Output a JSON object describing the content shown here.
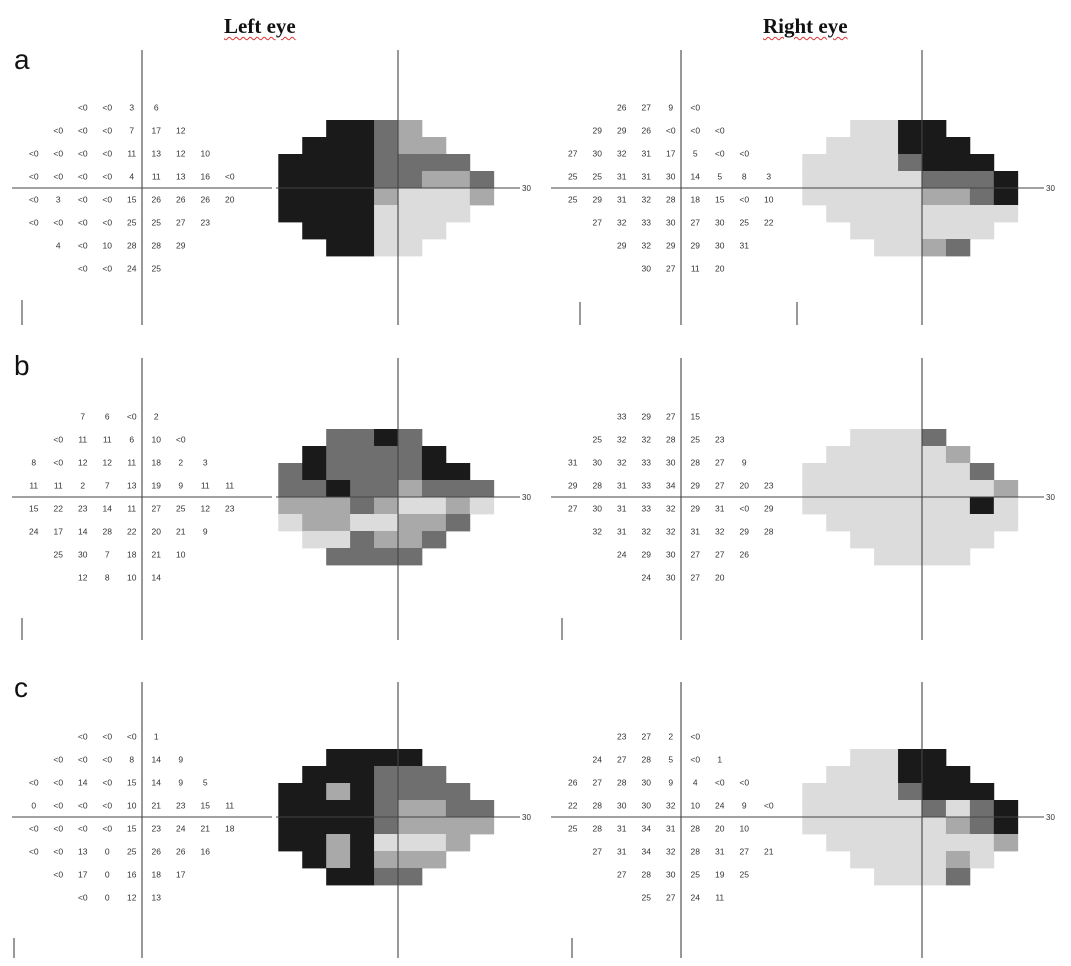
{
  "titles": {
    "left": "Left eye",
    "right": "Right eye"
  },
  "rows": [
    {
      "label": "a",
      "left_values": [
        [
          "",
          "",
          "<0",
          "<0",
          "3",
          "6",
          "",
          "",
          "",
          ""
        ],
        [
          "",
          "<0",
          "<0",
          "<0",
          "7",
          "17",
          "12",
          "",
          "",
          ""
        ],
        [
          "<0",
          "<0",
          "<0",
          "<0",
          "11",
          "13",
          "12",
          "10",
          "",
          ""
        ],
        [
          "<0",
          "<0",
          "<0",
          "<0",
          "4",
          "11",
          "13",
          "16",
          "<0",
          ""
        ],
        [
          "<0",
          "3",
          "<0",
          "<0",
          "15",
          "26",
          "26",
          "26",
          "20",
          ""
        ],
        [
          "<0",
          "<0",
          "<0",
          "<0",
          "25",
          "25",
          "27",
          "23",
          "",
          ""
        ],
        [
          "",
          "4",
          "<0",
          "10",
          "28",
          "28",
          "29",
          "",
          "",
          ""
        ],
        [
          "",
          "",
          "<0",
          "<0",
          "24",
          "25",
          "",
          "",
          "",
          ""
        ]
      ],
      "left_gray": [
        [
          0,
          0,
          4,
          4,
          3,
          2,
          0,
          0,
          0,
          0
        ],
        [
          0,
          4,
          4,
          4,
          3,
          2,
          2,
          0,
          0,
          0
        ],
        [
          4,
          4,
          4,
          4,
          3,
          3,
          3,
          3,
          0,
          0
        ],
        [
          4,
          4,
          4,
          4,
          3,
          3,
          2,
          2,
          3,
          0
        ],
        [
          4,
          4,
          4,
          4,
          2,
          1,
          1,
          1,
          2,
          0
        ],
        [
          4,
          4,
          4,
          4,
          1,
          1,
          1,
          1,
          0,
          0
        ],
        [
          0,
          4,
          4,
          4,
          1,
          1,
          1,
          0,
          0,
          0
        ],
        [
          0,
          0,
          4,
          4,
          1,
          1,
          0,
          0,
          0,
          0
        ]
      ],
      "right_values": [
        [
          "",
          "",
          "26",
          "27",
          "9",
          "<0",
          "",
          "",
          "",
          ""
        ],
        [
          "",
          "29",
          "29",
          "26",
          "<0",
          "<0",
          "<0",
          "",
          "",
          ""
        ],
        [
          "27",
          "30",
          "32",
          "31",
          "17",
          "5",
          "<0",
          "<0",
          "",
          ""
        ],
        [
          "25",
          "25",
          "31",
          "31",
          "30",
          "14",
          "5",
          "8",
          "3",
          ""
        ],
        [
          "25",
          "29",
          "31",
          "32",
          "28",
          "18",
          "15",
          "<0",
          "10",
          ""
        ],
        [
          "",
          "27",
          "32",
          "33",
          "30",
          "27",
          "30",
          "25",
          "22",
          ""
        ],
        [
          "",
          "",
          "29",
          "32",
          "29",
          "29",
          "30",
          "31",
          "",
          ""
        ],
        [
          "",
          "",
          "",
          "30",
          "27",
          "11",
          "20",
          "",
          "",
          ""
        ]
      ],
      "right_gray": [
        [
          0,
          0,
          1,
          1,
          4,
          4,
          0,
          0,
          0,
          0
        ],
        [
          0,
          1,
          1,
          1,
          4,
          4,
          4,
          0,
          0,
          0
        ],
        [
          1,
          1,
          1,
          1,
          3,
          4,
          4,
          4,
          0,
          0
        ],
        [
          1,
          1,
          1,
          1,
          1,
          3,
          3,
          3,
          4,
          0
        ],
        [
          1,
          1,
          1,
          1,
          1,
          2,
          2,
          3,
          4,
          0
        ],
        [
          0,
          1,
          1,
          1,
          1,
          1,
          1,
          1,
          1,
          0
        ],
        [
          0,
          0,
          1,
          1,
          1,
          1,
          1,
          1,
          0,
          0
        ],
        [
          0,
          0,
          0,
          1,
          1,
          2,
          3,
          0,
          0,
          0
        ]
      ]
    },
    {
      "label": "b",
      "left_values": [
        [
          "",
          "",
          "7",
          "6",
          "<0",
          "2",
          "",
          "",
          "",
          ""
        ],
        [
          "",
          "<0",
          "11",
          "11",
          "6",
          "10",
          "<0",
          "",
          "",
          ""
        ],
        [
          "8",
          "<0",
          "12",
          "12",
          "11",
          "18",
          "2",
          "3",
          "",
          ""
        ],
        [
          "11",
          "11",
          "2",
          "7",
          "13",
          "19",
          "9",
          "11",
          "11",
          ""
        ],
        [
          "15",
          "22",
          "23",
          "14",
          "11",
          "27",
          "25",
          "12",
          "23",
          ""
        ],
        [
          "24",
          "17",
          "14",
          "28",
          "22",
          "20",
          "21",
          "9",
          "",
          ""
        ],
        [
          "",
          "25",
          "30",
          "7",
          "18",
          "21",
          "10",
          "",
          "",
          ""
        ],
        [
          "",
          "",
          "12",
          "8",
          "10",
          "14",
          "",
          "",
          "",
          ""
        ]
      ],
      "left_gray": [
        [
          0,
          0,
          3,
          3,
          4,
          3,
          0,
          0,
          0,
          0
        ],
        [
          0,
          4,
          3,
          3,
          3,
          3,
          4,
          0,
          0,
          0
        ],
        [
          3,
          4,
          3,
          3,
          3,
          3,
          4,
          4,
          0,
          0
        ],
        [
          3,
          3,
          4,
          3,
          3,
          2,
          3,
          3,
          3,
          0
        ],
        [
          2,
          2,
          2,
          3,
          2,
          1,
          1,
          2,
          1,
          0
        ],
        [
          1,
          2,
          2,
          1,
          1,
          2,
          2,
          3,
          0,
          0
        ],
        [
          0,
          1,
          1,
          3,
          2,
          2,
          3,
          0,
          0,
          0
        ],
        [
          0,
          0,
          3,
          3,
          3,
          3,
          0,
          0,
          0,
          0
        ]
      ],
      "right_values": [
        [
          "",
          "",
          "33",
          "29",
          "27",
          "15",
          "",
          "",
          "",
          ""
        ],
        [
          "",
          "25",
          "32",
          "32",
          "28",
          "25",
          "23",
          "",
          "",
          ""
        ],
        [
          "31",
          "30",
          "32",
          "33",
          "30",
          "28",
          "27",
          "9",
          "",
          ""
        ],
        [
          "29",
          "28",
          "31",
          "33",
          "34",
          "29",
          "27",
          "20",
          "23",
          ""
        ],
        [
          "27",
          "30",
          "31",
          "33",
          "32",
          "29",
          "31",
          "<0",
          "29",
          ""
        ],
        [
          "",
          "32",
          "31",
          "32",
          "32",
          "31",
          "32",
          "29",
          "28",
          ""
        ],
        [
          "",
          "",
          "24",
          "29",
          "30",
          "27",
          "27",
          "26",
          "",
          ""
        ],
        [
          "",
          "",
          "",
          "24",
          "30",
          "27",
          "20",
          "",
          "",
          ""
        ]
      ],
      "right_gray": [
        [
          0,
          0,
          1,
          1,
          1,
          3,
          0,
          0,
          0,
          0
        ],
        [
          0,
          1,
          1,
          1,
          1,
          1,
          2,
          0,
          0,
          0
        ],
        [
          1,
          1,
          1,
          1,
          1,
          1,
          1,
          3,
          0,
          0
        ],
        [
          1,
          1,
          1,
          1,
          1,
          1,
          1,
          1,
          2,
          0
        ],
        [
          1,
          1,
          1,
          1,
          1,
          1,
          1,
          4,
          1,
          0
        ],
        [
          0,
          1,
          1,
          1,
          1,
          1,
          1,
          1,
          1,
          0
        ],
        [
          0,
          0,
          1,
          1,
          1,
          1,
          1,
          1,
          0,
          0
        ],
        [
          0,
          0,
          0,
          1,
          1,
          1,
          1,
          0,
          0,
          0
        ]
      ]
    },
    {
      "label": "c",
      "left_values": [
        [
          "",
          "",
          "<0",
          "<0",
          "<0",
          "1",
          "",
          "",
          "",
          ""
        ],
        [
          "",
          "<0",
          "<0",
          "<0",
          "8",
          "14",
          "9",
          "",
          "",
          ""
        ],
        [
          "<0",
          "<0",
          "14",
          "<0",
          "15",
          "14",
          "9",
          "5",
          "",
          ""
        ],
        [
          "0",
          "<0",
          "<0",
          "<0",
          "10",
          "21",
          "23",
          "15",
          "11",
          ""
        ],
        [
          "<0",
          "<0",
          "<0",
          "<0",
          "15",
          "23",
          "24",
          "21",
          "18",
          ""
        ],
        [
          "<0",
          "<0",
          "13",
          "0",
          "25",
          "26",
          "26",
          "16",
          "",
          ""
        ],
        [
          "",
          "<0",
          "17",
          "0",
          "16",
          "18",
          "17",
          "",
          "",
          ""
        ],
        [
          "",
          "",
          "<0",
          "0",
          "12",
          "13",
          "",
          "",
          "",
          ""
        ]
      ],
      "left_gray": [
        [
          0,
          0,
          4,
          4,
          4,
          4,
          0,
          0,
          0,
          0
        ],
        [
          0,
          4,
          4,
          4,
          3,
          3,
          3,
          0,
          0,
          0
        ],
        [
          4,
          4,
          2,
          4,
          3,
          3,
          3,
          3,
          0,
          0
        ],
        [
          4,
          4,
          4,
          4,
          3,
          2,
          2,
          3,
          3,
          0
        ],
        [
          4,
          4,
          4,
          4,
          3,
          2,
          2,
          2,
          2,
          0
        ],
        [
          4,
          4,
          2,
          4,
          1,
          1,
          1,
          2,
          0,
          0
        ],
        [
          0,
          4,
          2,
          4,
          2,
          2,
          2,
          0,
          0,
          0
        ],
        [
          0,
          0,
          4,
          4,
          3,
          3,
          0,
          0,
          0,
          0
        ]
      ],
      "right_values": [
        [
          "",
          "",
          "23",
          "27",
          "2",
          "<0",
          "",
          "",
          "",
          ""
        ],
        [
          "",
          "24",
          "27",
          "28",
          "5",
          "<0",
          "1",
          "",
          "",
          ""
        ],
        [
          "26",
          "27",
          "28",
          "30",
          "9",
          "4",
          "<0",
          "<0",
          "",
          ""
        ],
        [
          "22",
          "28",
          "30",
          "30",
          "32",
          "10",
          "24",
          "9",
          "<0",
          ""
        ],
        [
          "25",
          "28",
          "31",
          "34",
          "31",
          "28",
          "20",
          "10",
          "",
          ""
        ],
        [
          "",
          "27",
          "31",
          "34",
          "32",
          "28",
          "31",
          "27",
          "21",
          ""
        ],
        [
          "",
          "",
          "27",
          "28",
          "30",
          "25",
          "19",
          "25",
          "",
          ""
        ],
        [
          "",
          "",
          "",
          "25",
          "27",
          "24",
          "11",
          "",
          "",
          ""
        ]
      ],
      "right_gray": [
        [
          0,
          0,
          1,
          1,
          4,
          4,
          0,
          0,
          0,
          0
        ],
        [
          0,
          1,
          1,
          1,
          4,
          4,
          4,
          0,
          0,
          0
        ],
        [
          1,
          1,
          1,
          1,
          3,
          4,
          4,
          4,
          0,
          0
        ],
        [
          1,
          1,
          1,
          1,
          1,
          3,
          1,
          3,
          4,
          0
        ],
        [
          1,
          1,
          1,
          1,
          1,
          1,
          2,
          3,
          4,
          0
        ],
        [
          0,
          1,
          1,
          1,
          1,
          1,
          1,
          1,
          2,
          0
        ],
        [
          0,
          0,
          1,
          1,
          1,
          1,
          2,
          1,
          0,
          0
        ],
        [
          0,
          0,
          0,
          1,
          1,
          1,
          3,
          0,
          0,
          0
        ]
      ]
    }
  ],
  "axis_label": "30",
  "shade_colors": [
    "#ffffff",
    "#dcdcdc",
    "#a9a9a9",
    "#6f6f6f",
    "#1a1a1a"
  ]
}
